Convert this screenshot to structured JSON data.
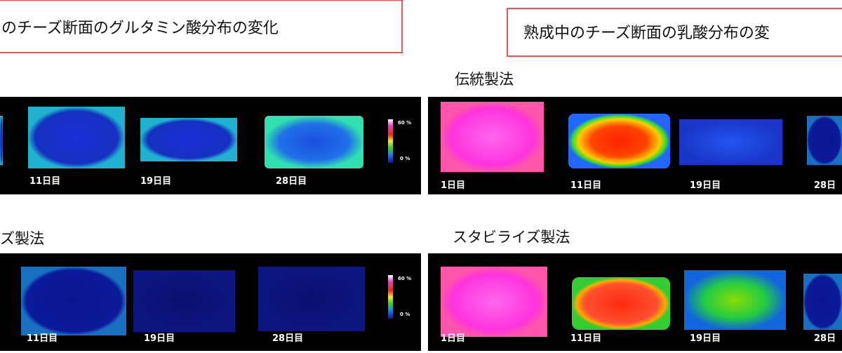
{
  "left": {
    "title": "のチーズ断面のグルタミン酸分布の変化",
    "top": {
      "days": [
        "11日目",
        "19日目",
        "28日目"
      ],
      "scale": [
        "60 %",
        "0 %"
      ]
    },
    "bottom": {
      "heading": "ズ製法",
      "days": [
        "11日目",
        "19日目",
        "28日目"
      ],
      "scale": [
        "60 %",
        "0 %"
      ]
    }
  },
  "right": {
    "title": "熟成中のチーズ断面の乳酸分布の変",
    "top": {
      "heading": "伝統製法",
      "days": [
        "1日目",
        "11日目",
        "19日目",
        "28日"
      ]
    },
    "bottom": {
      "heading": "スタビライズ製法",
      "days": [
        "1日目",
        "11日目",
        "19日目",
        "28日"
      ]
    }
  }
}
